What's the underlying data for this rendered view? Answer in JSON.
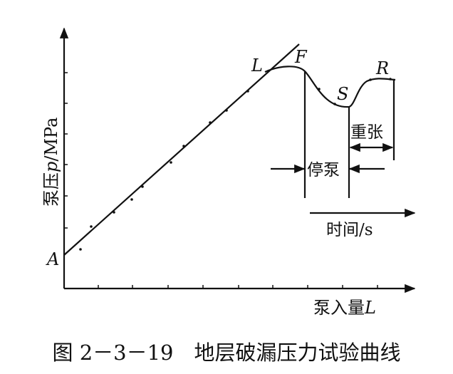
{
  "figure": {
    "y_axis_label": {
      "prefix": "泵压",
      "symbol": "p",
      "suffix": "/MPa"
    },
    "x_axis_label": {
      "prefix": "泵入量",
      "symbol": "L"
    },
    "points": [
      "A",
      "L",
      "F",
      "S",
      "R"
    ],
    "annotations": {
      "reopen": "重张",
      "shut_in": "停泵",
      "time_axis": "时间/s"
    },
    "caption": "图 2－3－19　地层破漏压力试验曲线"
  }
}
